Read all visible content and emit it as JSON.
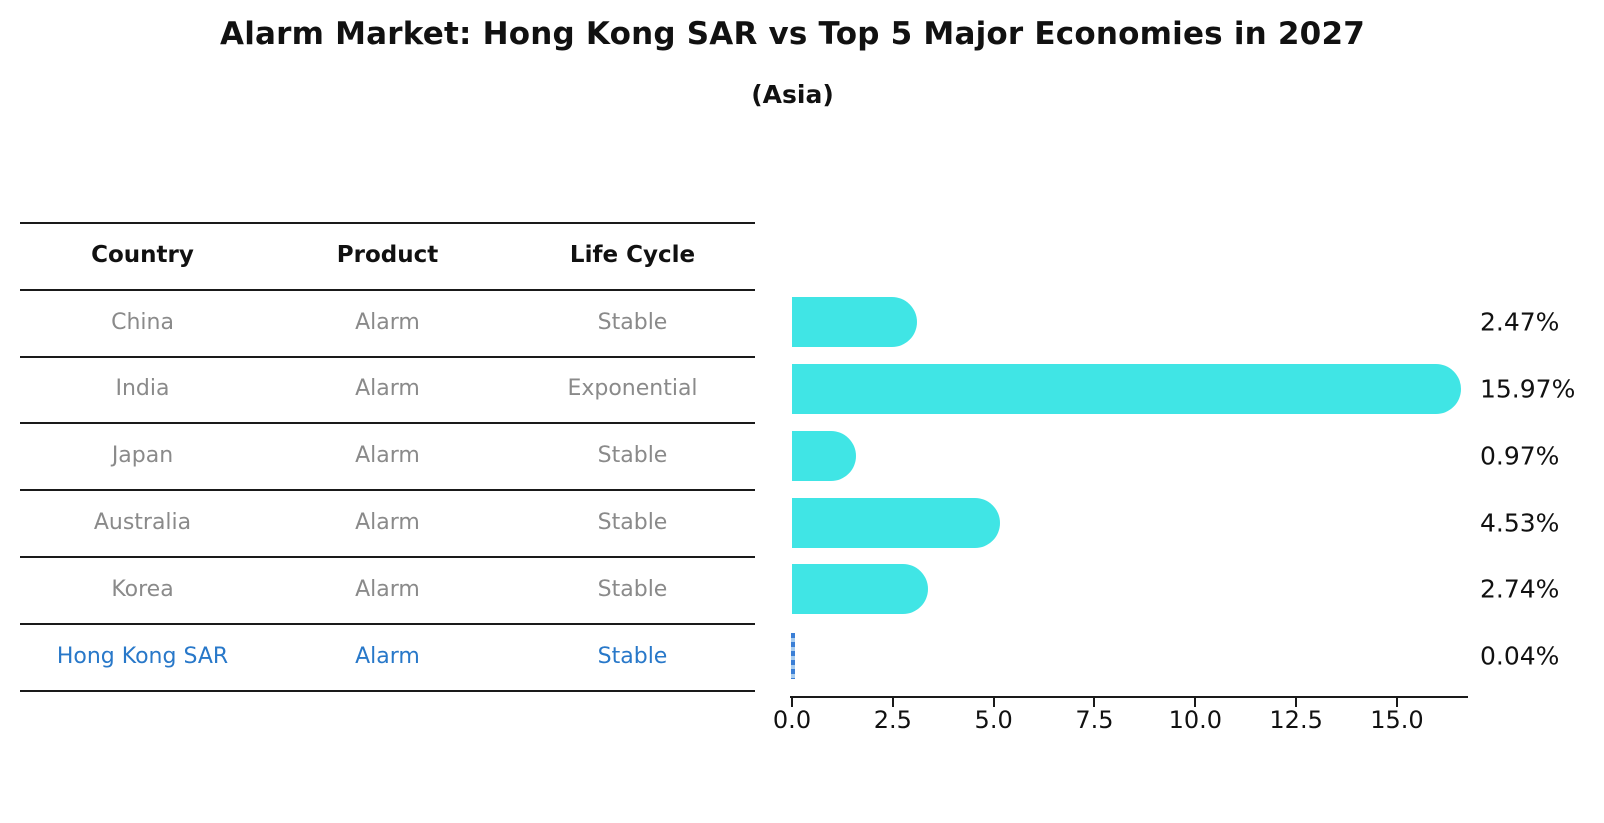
{
  "title": "Alarm Market: Hong Kong SAR vs Top 5 Major Economies in 2027",
  "subtitle": "(Asia)",
  "table": {
    "headers": [
      "Country",
      "Product",
      "Life Cycle"
    ],
    "rows": [
      {
        "country": "China",
        "product": "Alarm",
        "life_cycle": "Stable",
        "highlight": false
      },
      {
        "country": "India",
        "product": "Alarm",
        "life_cycle": "Exponential",
        "highlight": false
      },
      {
        "country": "Japan",
        "product": "Alarm",
        "life_cycle": "Stable",
        "highlight": false
      },
      {
        "country": "Australia",
        "product": "Alarm",
        "life_cycle": "Stable",
        "highlight": false
      },
      {
        "country": "Korea",
        "product": "Alarm",
        "life_cycle": "Stable",
        "highlight": false
      },
      {
        "country": "Hong Kong SAR",
        "product": "Alarm",
        "life_cycle": "Stable",
        "highlight": true
      }
    ]
  },
  "chart_data": {
    "type": "bar",
    "orientation": "horizontal",
    "categories": [
      "China",
      "India",
      "Japan",
      "Australia",
      "Korea",
      "Hong Kong SAR"
    ],
    "values": [
      2.47,
      15.97,
      0.97,
      4.53,
      2.74,
      0.04
    ],
    "value_labels": [
      "2.47%",
      "15.97%",
      "0.97%",
      "4.53%",
      "2.74%",
      "0.04%"
    ],
    "x_tick_labels": [
      "0.0",
      "2.5",
      "5.0",
      "7.5",
      "10.0",
      "12.5",
      "15.0"
    ],
    "x_tick_values": [
      0,
      2.5,
      5,
      7.5,
      10,
      12.5,
      15
    ],
    "xlim": [
      0,
      16.75
    ],
    "grid": false,
    "legend": false,
    "bar_color": "#40E5E5",
    "highlight_index": 5,
    "highlight_style": "dashed-outline",
    "highlight_color": "#3b7fd6",
    "highlight_text_color": "#2878C9",
    "row_text_color": "#8a8a8a"
  }
}
